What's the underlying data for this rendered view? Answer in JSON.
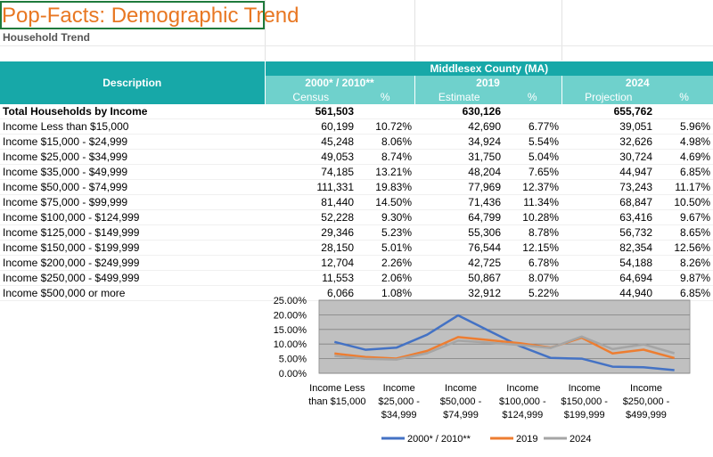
{
  "title": "Pop-Facts: Demographic Trend",
  "subtitle": "Household Trend",
  "table": {
    "description_header": "Description",
    "region": "Middlesex County (MA)",
    "period_headers": [
      "2000* / 2010**",
      "2019",
      "2024"
    ],
    "sub_headers": [
      "Census",
      "%",
      "Estimate",
      "%",
      "Projection",
      "%"
    ],
    "rows": [
      {
        "label": "Total Households by Income",
        "c1": "561,503",
        "p1": "",
        "c2": "630,126",
        "p2": "",
        "c3": "655,762",
        "p3": ""
      },
      {
        "label": "Income Less than $15,000",
        "c1": "60,199",
        "p1": "10.72%",
        "c2": "42,690",
        "p2": "6.77%",
        "c3": "39,051",
        "p3": "5.96%"
      },
      {
        "label": "Income $15,000 - $24,999",
        "c1": "45,248",
        "p1": "8.06%",
        "c2": "34,924",
        "p2": "5.54%",
        "c3": "32,626",
        "p3": "4.98%"
      },
      {
        "label": "Income $25,000 - $34,999",
        "c1": "49,053",
        "p1": "8.74%",
        "c2": "31,750",
        "p2": "5.04%",
        "c3": "30,724",
        "p3": "4.69%"
      },
      {
        "label": "Income $35,000 - $49,999",
        "c1": "74,185",
        "p1": "13.21%",
        "c2": "48,204",
        "p2": "7.65%",
        "c3": "44,947",
        "p3": "6.85%"
      },
      {
        "label": "Income $50,000 - $74,999",
        "c1": "111,331",
        "p1": "19.83%",
        "c2": "77,969",
        "p2": "12.37%",
        "c3": "73,243",
        "p3": "11.17%"
      },
      {
        "label": "Income $75,000 - $99,999",
        "c1": "81,440",
        "p1": "14.50%",
        "c2": "71,436",
        "p2": "11.34%",
        "c3": "68,847",
        "p3": "10.50%"
      },
      {
        "label": "Income $100,000 - $124,999",
        "c1": "52,228",
        "p1": "9.30%",
        "c2": "64,799",
        "p2": "10.28%",
        "c3": "63,416",
        "p3": "9.67%"
      },
      {
        "label": "Income $125,000 - $149,999",
        "c1": "29,346",
        "p1": "5.23%",
        "c2": "55,306",
        "p2": "8.78%",
        "c3": "56,732",
        "p3": "8.65%"
      },
      {
        "label": "Income $150,000 - $199,999",
        "c1": "28,150",
        "p1": "5.01%",
        "c2": "76,544",
        "p2": "12.15%",
        "c3": "82,354",
        "p3": "12.56%"
      },
      {
        "label": "Income $200,000 - $249,999",
        "c1": "12,704",
        "p1": "2.26%",
        "c2": "42,725",
        "p2": "6.78%",
        "c3": "54,188",
        "p3": "8.26%"
      },
      {
        "label": "Income $250,000 - $499,999",
        "c1": "11,553",
        "p1": "2.06%",
        "c2": "50,867",
        "p2": "8.07%",
        "c3": "64,694",
        "p3": "9.87%"
      },
      {
        "label": "Income $500,000 or more",
        "c1": "6,066",
        "p1": "1.08%",
        "c2": "32,912",
        "p2": "5.22%",
        "c3": "44,940",
        "p3": "6.85%"
      }
    ]
  },
  "chart_data": {
    "type": "line",
    "title": "",
    "xlabel": "",
    "ylabel": "",
    "ylim": [
      0,
      25
    ],
    "yticks": [
      "0.00%",
      "5.00%",
      "10.00%",
      "15.00%",
      "20.00%",
      "25.00%"
    ],
    "categories": [
      "Income Less than $15,000",
      "Income $15,000 - $24,999",
      "Income $25,000 - $34,999",
      "Income $35,000 - $49,999",
      "Income $50,000 - $74,999",
      "Income $75,000 - $99,999",
      "Income $100,000 - $124,999",
      "Income $125,000 - $149,999",
      "Income $150,000 - $199,999",
      "Income $200,000 - $249,999",
      "Income $250,000 - $499,999",
      "Income $500,000 or more"
    ],
    "x_tick_labels": [
      [
        "Income Less",
        "than $15,000"
      ],
      [
        "Income",
        "$25,000 -",
        "$34,999"
      ],
      [
        "Income",
        "$50,000 -",
        "$74,999"
      ],
      [
        "Income",
        "$100,000 -",
        "$124,999"
      ],
      [
        "Income",
        "$150,000 -",
        "$199,999"
      ],
      [
        "Income",
        "$250,000 -",
        "$499,999"
      ]
    ],
    "legend_position": "bottom",
    "plot_background": "#c0c0c0",
    "series": [
      {
        "name": "2000* / 2010**",
        "color": "#4472c4",
        "values": [
          10.72,
          8.06,
          8.74,
          13.21,
          19.83,
          14.5,
          9.3,
          5.23,
          5.01,
          2.26,
          2.06,
          1.08
        ]
      },
      {
        "name": "2019",
        "color": "#ed7d31",
        "values": [
          6.77,
          5.54,
          5.04,
          7.65,
          12.37,
          11.34,
          10.28,
          8.78,
          12.15,
          6.78,
          8.07,
          5.22
        ]
      },
      {
        "name": "2024",
        "color": "#a5a5a5",
        "values": [
          5.96,
          4.98,
          4.69,
          6.85,
          11.17,
          10.5,
          9.67,
          8.65,
          12.56,
          8.26,
          9.87,
          6.85
        ]
      }
    ]
  }
}
